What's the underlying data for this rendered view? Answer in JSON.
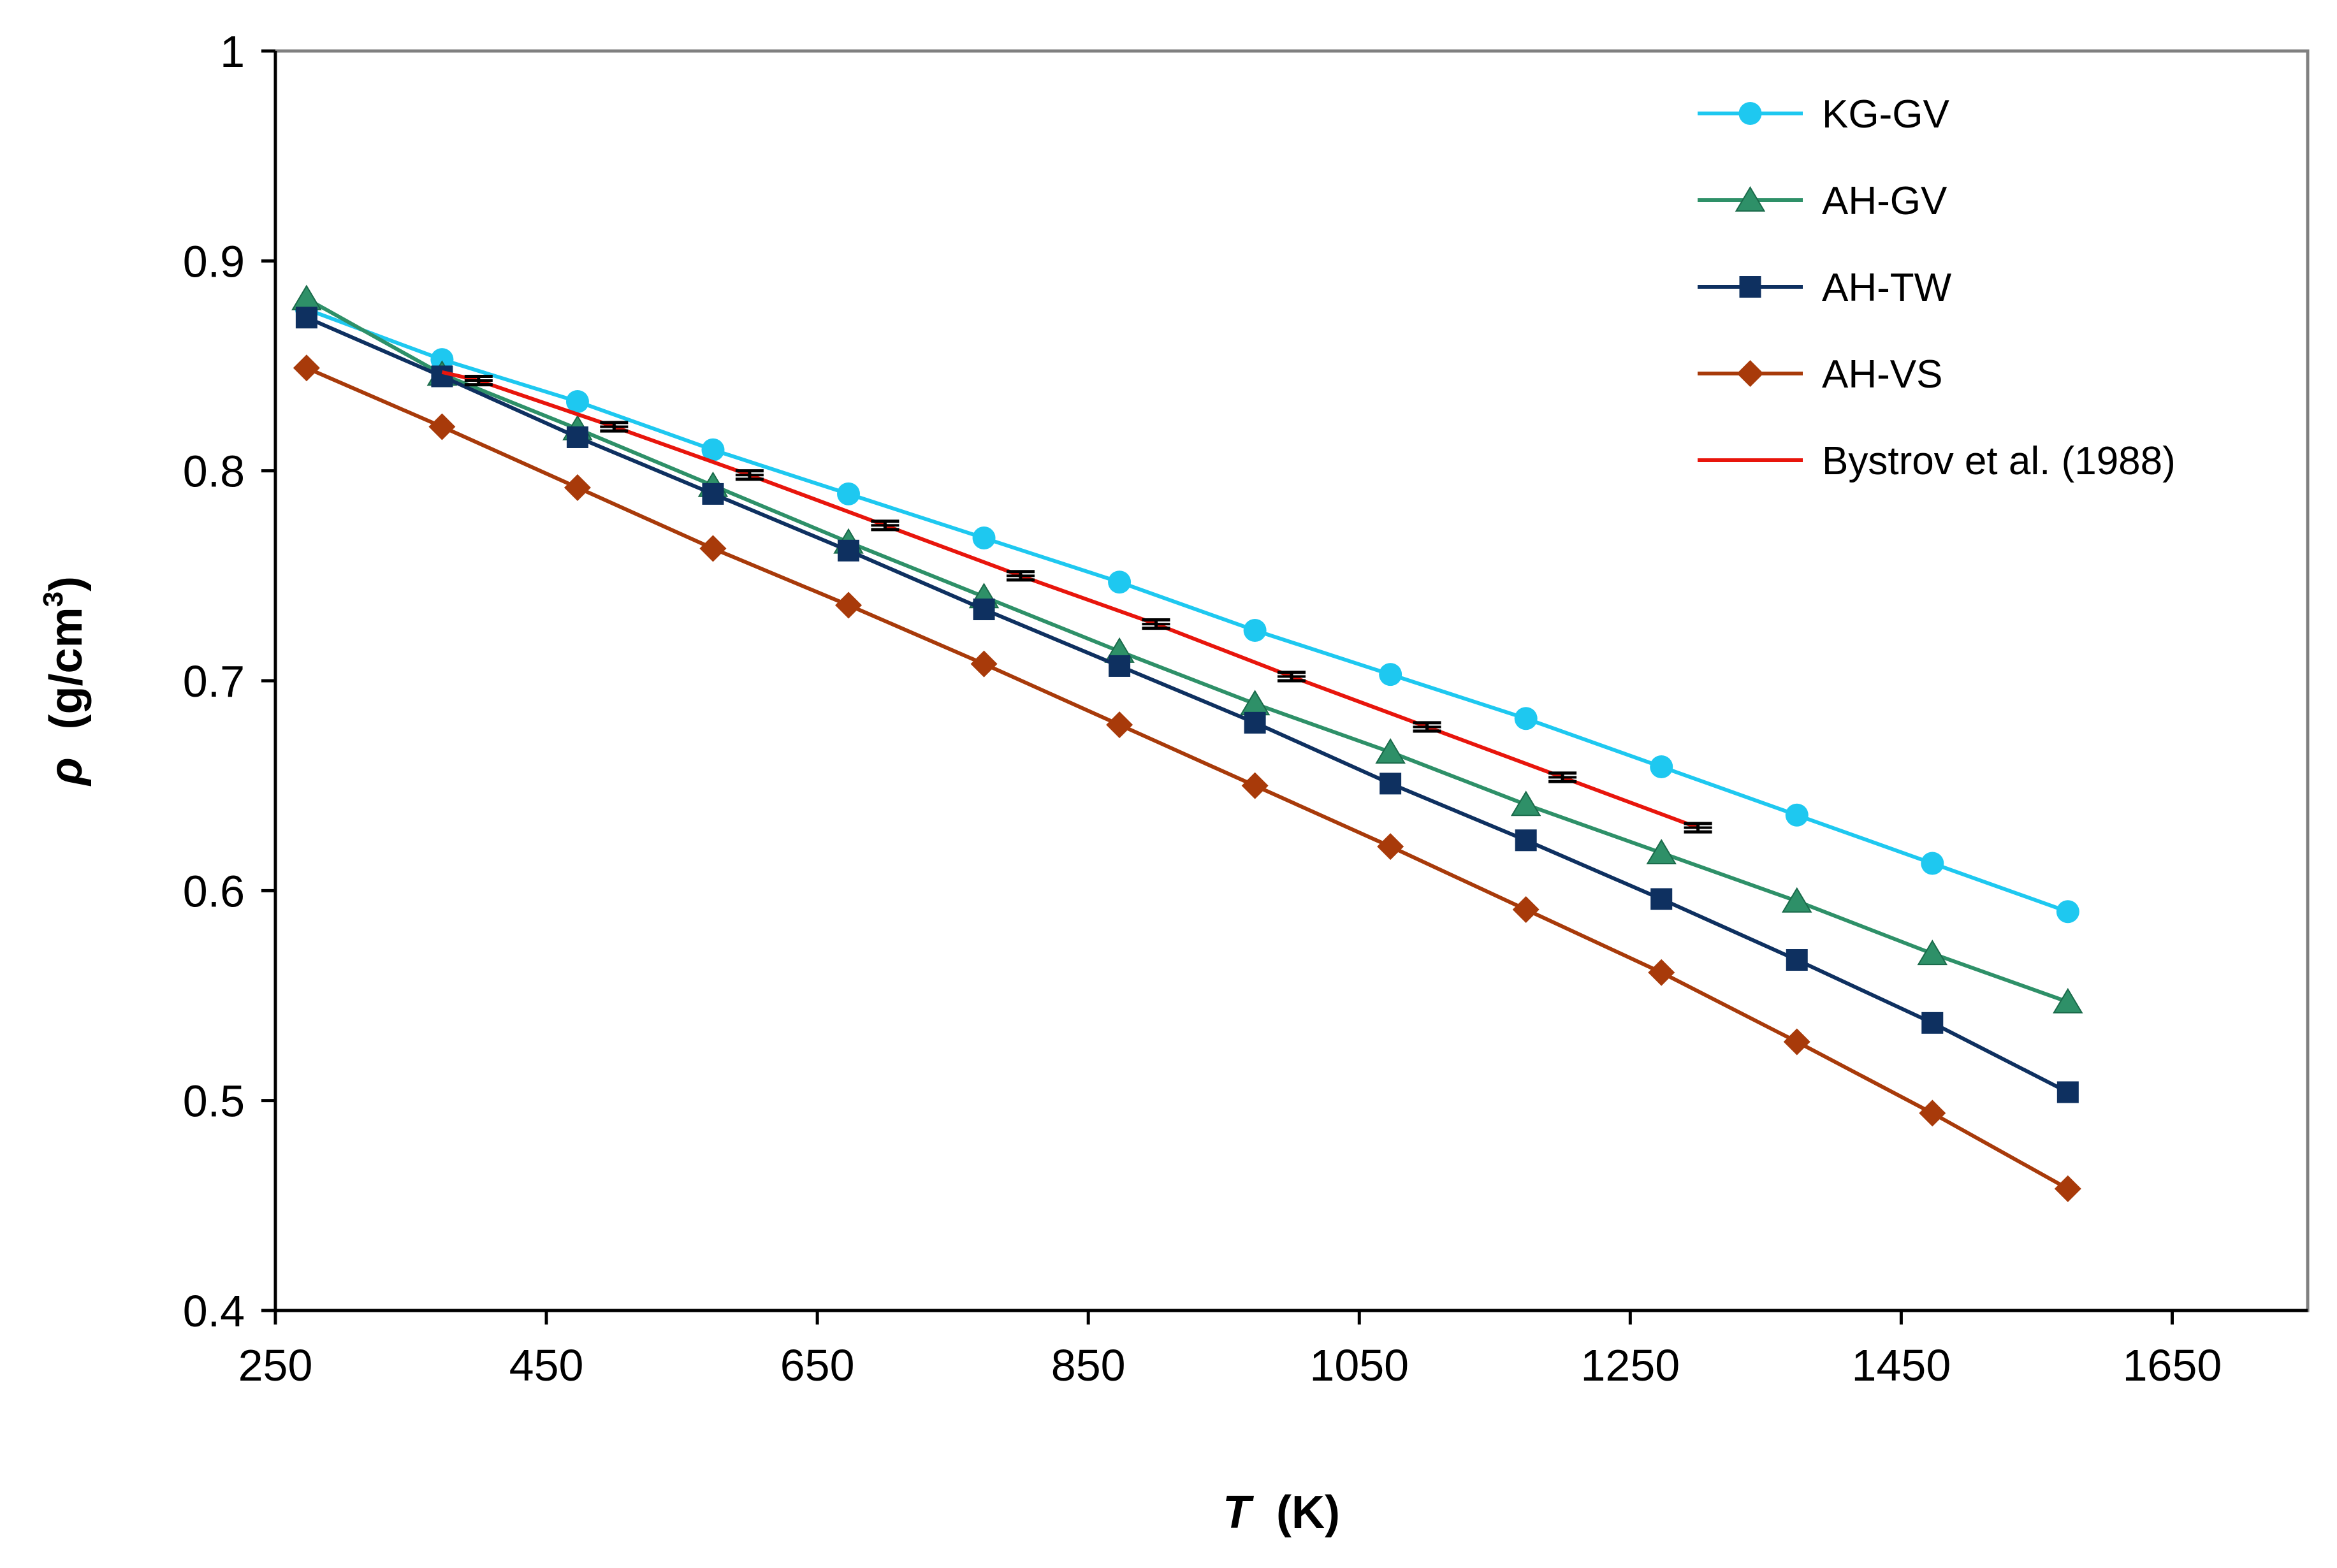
{
  "chart_data": {
    "type": "line",
    "title": "",
    "xlabel_symbol": "T",
    "xlabel_unit": "(K)",
    "ylabel_symbol": "ρ",
    "ylabel_unit_pre": "(g/cm",
    "ylabel_unit_sup": "3",
    "ylabel_unit_post": ")",
    "xlim": [
      250,
      1750
    ],
    "ylim": [
      0.4,
      1.0
    ],
    "xticks": [
      250,
      450,
      650,
      850,
      1050,
      1250,
      1450,
      1650
    ],
    "yticks": [
      0.4,
      0.5,
      0.6,
      0.7,
      0.8,
      0.9,
      1.0
    ],
    "ytick_labels": [
      "0.4",
      "0.5",
      "0.6",
      "0.7",
      "0.8",
      "0.9",
      "1"
    ],
    "grid": false,
    "legend_position": "top-right",
    "series": [
      {
        "name": "KG-GV",
        "color": "#1EC8F0",
        "line_color": "#1EC8F0",
        "marker": "circle",
        "x": [
          273,
          373,
          473,
          573,
          673,
          773,
          873,
          973,
          1073,
          1173,
          1273,
          1373,
          1473,
          1573
        ],
        "y": [
          0.877,
          0.853,
          0.833,
          0.81,
          0.789,
          0.768,
          0.747,
          0.724,
          0.703,
          0.682,
          0.659,
          0.636,
          0.613,
          0.59
        ]
      },
      {
        "name": "AH-GV",
        "color": "#2E9068",
        "line_color": "#2E9068",
        "marker": "triangle",
        "x": [
          273,
          373,
          473,
          573,
          673,
          773,
          873,
          973,
          1073,
          1173,
          1273,
          1373,
          1473,
          1573
        ],
        "y": [
          0.882,
          0.846,
          0.82,
          0.793,
          0.766,
          0.74,
          0.714,
          0.689,
          0.666,
          0.641,
          0.618,
          0.595,
          0.57,
          0.547
        ]
      },
      {
        "name": "AH-TW",
        "color": "#0E3060",
        "line_color": "#0E3060",
        "marker": "square",
        "x": [
          273,
          373,
          473,
          573,
          673,
          773,
          873,
          973,
          1073,
          1173,
          1273,
          1373,
          1473,
          1573
        ],
        "y": [
          0.873,
          0.845,
          0.816,
          0.789,
          0.762,
          0.734,
          0.707,
          0.68,
          0.651,
          0.624,
          0.596,
          0.567,
          0.537,
          0.504
        ]
      },
      {
        "name": "AH-VS",
        "color": "#A83A0A",
        "line_color": "#A83A0A",
        "marker": "diamond",
        "x": [
          273,
          373,
          473,
          573,
          673,
          773,
          873,
          973,
          1073,
          1173,
          1273,
          1373,
          1473,
          1573
        ],
        "y": [
          0.849,
          0.821,
          0.792,
          0.763,
          0.736,
          0.708,
          0.679,
          0.65,
          0.621,
          0.591,
          0.561,
          0.528,
          0.494,
          0.458
        ]
      },
      {
        "name": "Bystrov et al. (1988)",
        "color": "#E8150C",
        "line_color": "#E8150C",
        "marker": "none",
        "x": [
          373,
          400,
          500,
          600,
          700,
          800,
          900,
          1000,
          1100,
          1200,
          1300
        ],
        "y": [
          0.847,
          0.843,
          0.821,
          0.798,
          0.774,
          0.75,
          0.727,
          0.702,
          0.678,
          0.654,
          0.63
        ],
        "error_bar_x": [
          400,
          500,
          600,
          700,
          800,
          900,
          1000,
          1100,
          1200,
          1300
        ],
        "error_bar_y": [
          0.843,
          0.821,
          0.798,
          0.774,
          0.75,
          0.727,
          0.702,
          0.678,
          0.654,
          0.63
        ],
        "error": 0.002
      }
    ]
  }
}
